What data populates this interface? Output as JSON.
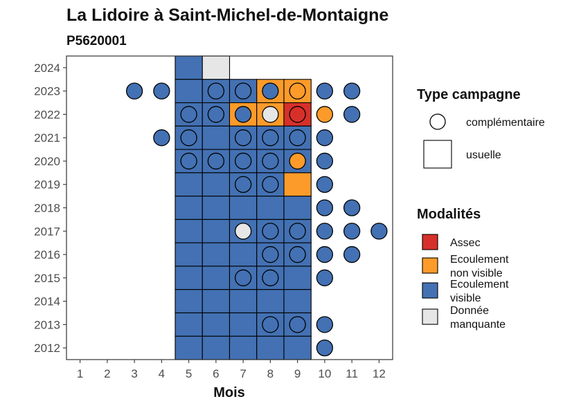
{
  "chart_data": {
    "type": "heatmap",
    "title": "La Lidoire à Saint-Michel-de-Montaigne",
    "subtitle": "P5620001",
    "xlabel": "Mois",
    "ylabel": "",
    "x_ticks": [
      1,
      2,
      3,
      4,
      5,
      6,
      7,
      8,
      9,
      10,
      11,
      12
    ],
    "y_ticks": [
      2012,
      2013,
      2014,
      2015,
      2016,
      2017,
      2018,
      2019,
      2020,
      2021,
      2022,
      2023,
      2024
    ],
    "xlim": [
      0.5,
      12.5
    ],
    "ylim": [
      2011.5,
      2024.5
    ],
    "grid": false,
    "legend_position": "right",
    "legend_type": {
      "title": "Type campagne",
      "items": [
        {
          "key": "complementaire",
          "label": "complémentaire",
          "shape": "circle"
        },
        {
          "key": "usuelle",
          "label": "usuelle",
          "shape": "square"
        }
      ]
    },
    "legend_modalites": {
      "title": "Modalités",
      "items": [
        {
          "key": "assec",
          "lines": [
            "Assec"
          ],
          "color": "#d7302a"
        },
        {
          "key": "ecoulement_non_visible",
          "lines": [
            "Ecoulement",
            "non visible"
          ],
          "color": "#fd9b2a"
        },
        {
          "key": "ecoulement_visible",
          "lines": [
            "Ecoulement",
            "visible"
          ],
          "color": "#4371b3"
        },
        {
          "key": "donnee_manquante",
          "lines": [
            "Donnée",
            "manquante"
          ],
          "color": "#e6e6e6"
        }
      ]
    },
    "colors": {
      "assec": "#d7302a",
      "ecoulement_non_visible": "#fd9b2a",
      "ecoulement_visible": "#4371b3",
      "donnee_manquante": "#e6e6e6"
    },
    "usuelle": [
      {
        "year": 2024,
        "month": 5,
        "modalite": "ecoulement_visible"
      },
      {
        "year": 2024,
        "month": 6,
        "modalite": "donnee_manquante"
      },
      {
        "year": 2023,
        "month": 5,
        "modalite": "ecoulement_visible"
      },
      {
        "year": 2023,
        "month": 6,
        "modalite": "ecoulement_visible"
      },
      {
        "year": 2023,
        "month": 7,
        "modalite": "ecoulement_visible"
      },
      {
        "year": 2023,
        "month": 8,
        "modalite": "ecoulement_non_visible"
      },
      {
        "year": 2023,
        "month": 9,
        "modalite": "ecoulement_non_visible"
      },
      {
        "year": 2022,
        "month": 5,
        "modalite": "ecoulement_visible"
      },
      {
        "year": 2022,
        "month": 6,
        "modalite": "ecoulement_visible"
      },
      {
        "year": 2022,
        "month": 7,
        "modalite": "ecoulement_non_visible"
      },
      {
        "year": 2022,
        "month": 8,
        "modalite": "ecoulement_non_visible"
      },
      {
        "year": 2022,
        "month": 9,
        "modalite": "assec"
      },
      {
        "year": 2021,
        "month": 5,
        "modalite": "ecoulement_visible"
      },
      {
        "year": 2021,
        "month": 6,
        "modalite": "ecoulement_visible"
      },
      {
        "year": 2021,
        "month": 7,
        "modalite": "ecoulement_visible"
      },
      {
        "year": 2021,
        "month": 8,
        "modalite": "ecoulement_visible"
      },
      {
        "year": 2021,
        "month": 9,
        "modalite": "ecoulement_visible"
      },
      {
        "year": 2020,
        "month": 5,
        "modalite": "ecoulement_visible"
      },
      {
        "year": 2020,
        "month": 6,
        "modalite": "ecoulement_visible"
      },
      {
        "year": 2020,
        "month": 7,
        "modalite": "ecoulement_visible"
      },
      {
        "year": 2020,
        "month": 8,
        "modalite": "ecoulement_visible"
      },
      {
        "year": 2020,
        "month": 9,
        "modalite": "ecoulement_visible"
      },
      {
        "year": 2019,
        "month": 5,
        "modalite": "ecoulement_visible"
      },
      {
        "year": 2019,
        "month": 6,
        "modalite": "ecoulement_visible"
      },
      {
        "year": 2019,
        "month": 7,
        "modalite": "ecoulement_visible"
      },
      {
        "year": 2019,
        "month": 8,
        "modalite": "ecoulement_visible"
      },
      {
        "year": 2019,
        "month": 9,
        "modalite": "ecoulement_non_visible"
      },
      {
        "year": 2018,
        "month": 5,
        "modalite": "ecoulement_visible"
      },
      {
        "year": 2018,
        "month": 6,
        "modalite": "ecoulement_visible"
      },
      {
        "year": 2018,
        "month": 7,
        "modalite": "ecoulement_visible"
      },
      {
        "year": 2018,
        "month": 8,
        "modalite": "ecoulement_visible"
      },
      {
        "year": 2018,
        "month": 9,
        "modalite": "ecoulement_visible"
      },
      {
        "year": 2017,
        "month": 5,
        "modalite": "ecoulement_visible"
      },
      {
        "year": 2017,
        "month": 6,
        "modalite": "ecoulement_visible"
      },
      {
        "year": 2017,
        "month": 7,
        "modalite": "ecoulement_visible"
      },
      {
        "year": 2017,
        "month": 8,
        "modalite": "ecoulement_visible"
      },
      {
        "year": 2017,
        "month": 9,
        "modalite": "ecoulement_visible"
      },
      {
        "year": 2016,
        "month": 5,
        "modalite": "ecoulement_visible"
      },
      {
        "year": 2016,
        "month": 6,
        "modalite": "ecoulement_visible"
      },
      {
        "year": 2016,
        "month": 7,
        "modalite": "ecoulement_visible"
      },
      {
        "year": 2016,
        "month": 8,
        "modalite": "ecoulement_visible"
      },
      {
        "year": 2016,
        "month": 9,
        "modalite": "ecoulement_visible"
      },
      {
        "year": 2015,
        "month": 5,
        "modalite": "ecoulement_visible"
      },
      {
        "year": 2015,
        "month": 6,
        "modalite": "ecoulement_visible"
      },
      {
        "year": 2015,
        "month": 7,
        "modalite": "ecoulement_visible"
      },
      {
        "year": 2015,
        "month": 8,
        "modalite": "ecoulement_visible"
      },
      {
        "year": 2015,
        "month": 9,
        "modalite": "ecoulement_visible"
      },
      {
        "year": 2014,
        "month": 5,
        "modalite": "ecoulement_visible"
      },
      {
        "year": 2014,
        "month": 6,
        "modalite": "ecoulement_visible"
      },
      {
        "year": 2014,
        "month": 7,
        "modalite": "ecoulement_visible"
      },
      {
        "year": 2014,
        "month": 8,
        "modalite": "ecoulement_visible"
      },
      {
        "year": 2014,
        "month": 9,
        "modalite": "ecoulement_visible"
      },
      {
        "year": 2013,
        "month": 5,
        "modalite": "ecoulement_visible"
      },
      {
        "year": 2013,
        "month": 6,
        "modalite": "ecoulement_visible"
      },
      {
        "year": 2013,
        "month": 7,
        "modalite": "ecoulement_visible"
      },
      {
        "year": 2013,
        "month": 8,
        "modalite": "ecoulement_visible"
      },
      {
        "year": 2013,
        "month": 9,
        "modalite": "ecoulement_visible"
      },
      {
        "year": 2012,
        "month": 5,
        "modalite": "ecoulement_visible"
      },
      {
        "year": 2012,
        "month": 6,
        "modalite": "ecoulement_visible"
      },
      {
        "year": 2012,
        "month": 7,
        "modalite": "ecoulement_visible"
      },
      {
        "year": 2012,
        "month": 8,
        "modalite": "ecoulement_visible"
      },
      {
        "year": 2012,
        "month": 9,
        "modalite": "ecoulement_visible"
      }
    ],
    "complementaire": [
      {
        "year": 2023,
        "month": 3,
        "modalite": "ecoulement_visible"
      },
      {
        "year": 2023,
        "month": 4,
        "modalite": "ecoulement_visible"
      },
      {
        "year": 2023,
        "month": 6,
        "modalite": "ecoulement_visible"
      },
      {
        "year": 2023,
        "month": 7,
        "modalite": "ecoulement_visible"
      },
      {
        "year": 2023,
        "month": 8,
        "modalite": "ecoulement_visible"
      },
      {
        "year": 2023,
        "month": 9,
        "modalite": "ecoulement_non_visible"
      },
      {
        "year": 2023,
        "month": 10,
        "modalite": "ecoulement_visible"
      },
      {
        "year": 2023,
        "month": 11,
        "modalite": "ecoulement_visible"
      },
      {
        "year": 2022,
        "month": 5,
        "modalite": "ecoulement_visible"
      },
      {
        "year": 2022,
        "month": 6,
        "modalite": "ecoulement_visible"
      },
      {
        "year": 2022,
        "month": 7,
        "modalite": "ecoulement_visible"
      },
      {
        "year": 2022,
        "month": 8,
        "modalite": "donnee_manquante"
      },
      {
        "year": 2022,
        "month": 9,
        "modalite": "assec"
      },
      {
        "year": 2022,
        "month": 10,
        "modalite": "ecoulement_non_visible"
      },
      {
        "year": 2022,
        "month": 11,
        "modalite": "ecoulement_visible"
      },
      {
        "year": 2021,
        "month": 4,
        "modalite": "ecoulement_visible"
      },
      {
        "year": 2021,
        "month": 5,
        "modalite": "ecoulement_visible"
      },
      {
        "year": 2021,
        "month": 7,
        "modalite": "ecoulement_visible"
      },
      {
        "year": 2021,
        "month": 8,
        "modalite": "ecoulement_visible"
      },
      {
        "year": 2021,
        "month": 9,
        "modalite": "ecoulement_visible"
      },
      {
        "year": 2021,
        "month": 10,
        "modalite": "ecoulement_visible"
      },
      {
        "year": 2020,
        "month": 5,
        "modalite": "ecoulement_visible"
      },
      {
        "year": 2020,
        "month": 6,
        "modalite": "ecoulement_visible"
      },
      {
        "year": 2020,
        "month": 7,
        "modalite": "ecoulement_visible"
      },
      {
        "year": 2020,
        "month": 8,
        "modalite": "ecoulement_visible"
      },
      {
        "year": 2020,
        "month": 9,
        "modalite": "ecoulement_non_visible"
      },
      {
        "year": 2020,
        "month": 10,
        "modalite": "ecoulement_visible"
      },
      {
        "year": 2019,
        "month": 7,
        "modalite": "ecoulement_visible"
      },
      {
        "year": 2019,
        "month": 8,
        "modalite": "ecoulement_visible"
      },
      {
        "year": 2019,
        "month": 10,
        "modalite": "ecoulement_visible"
      },
      {
        "year": 2018,
        "month": 10,
        "modalite": "ecoulement_visible"
      },
      {
        "year": 2018,
        "month": 11,
        "modalite": "ecoulement_visible"
      },
      {
        "year": 2017,
        "month": 7,
        "modalite": "donnee_manquante"
      },
      {
        "year": 2017,
        "month": 8,
        "modalite": "ecoulement_visible"
      },
      {
        "year": 2017,
        "month": 9,
        "modalite": "ecoulement_visible"
      },
      {
        "year": 2017,
        "month": 10,
        "modalite": "ecoulement_visible"
      },
      {
        "year": 2017,
        "month": 11,
        "modalite": "ecoulement_visible"
      },
      {
        "year": 2017,
        "month": 12,
        "modalite": "ecoulement_visible"
      },
      {
        "year": 2016,
        "month": 8,
        "modalite": "ecoulement_visible"
      },
      {
        "year": 2016,
        "month": 9,
        "modalite": "ecoulement_visible"
      },
      {
        "year": 2016,
        "month": 10,
        "modalite": "ecoulement_visible"
      },
      {
        "year": 2016,
        "month": 11,
        "modalite": "ecoulement_visible"
      },
      {
        "year": 2015,
        "month": 7,
        "modalite": "ecoulement_visible"
      },
      {
        "year": 2015,
        "month": 8,
        "modalite": "ecoulement_visible"
      },
      {
        "year": 2015,
        "month": 10,
        "modalite": "ecoulement_visible"
      },
      {
        "year": 2013,
        "month": 8,
        "modalite": "ecoulement_visible"
      },
      {
        "year": 2013,
        "month": 9,
        "modalite": "ecoulement_visible"
      },
      {
        "year": 2013,
        "month": 10,
        "modalite": "ecoulement_visible"
      },
      {
        "year": 2012,
        "month": 10,
        "modalite": "ecoulement_visible"
      }
    ]
  }
}
